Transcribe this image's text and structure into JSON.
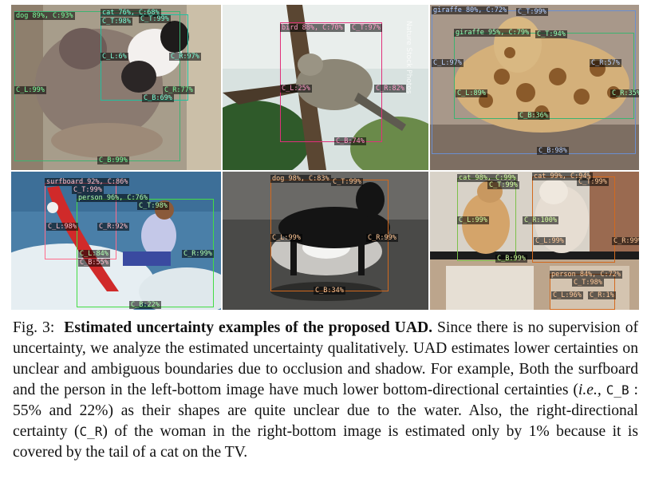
{
  "figure": {
    "panels": [
      {
        "id": "dog-cat",
        "boxes": [
          {
            "color": "#3cb371",
            "labels": [
              "dog 89%, C:93%",
              "C_L:99%",
              "C_R:77%",
              "C_B:99%"
            ]
          },
          {
            "color": "#20c0a0",
            "labels": [
              "cat 76%, C:68%",
              "C_T:98%",
              "C_T:99%",
              "C_L:6%",
              "C_R:97%",
              "C_B:69%"
            ]
          }
        ]
      },
      {
        "id": "bird",
        "boxes": [
          {
            "color": "#e0307a",
            "labels": [
              "bird 88%, C:70%",
              "C_T:97%",
              "C_L:25%",
              "C_R:82%",
              "C_B:74%"
            ]
          }
        ],
        "watermark": "Nature Stock Photos"
      },
      {
        "id": "giraffe",
        "boxes": [
          {
            "color": "#6a8fd0",
            "labels": [
              "giraffe 80%, C:72%",
              "C_T:99%",
              "C_L:97%",
              "C_R:57%",
              "C_B:98%"
            ]
          },
          {
            "color": "#3cb371",
            "labels": [
              "giraffe 95%, C:79%",
              "C_T:94%",
              "C_L:89%",
              "C_R:35%",
              "C_B:36%"
            ]
          }
        ]
      },
      {
        "id": "surf",
        "boxes": [
          {
            "color": "#ff6b8a",
            "labels": [
              "surfboard 92%, C:86%",
              "C_T:99%",
              "C_L:98%",
              "C_R:92%",
              "C_B:55%"
            ]
          },
          {
            "color": "#44dd44",
            "labels": [
              "person 96%, C:76%",
              "C_T:98%",
              "C_L:84%",
              "C_R:99%",
              "C_B:22%"
            ]
          }
        ]
      },
      {
        "id": "dog-sunset",
        "boxes": [
          {
            "color": "#d2691e",
            "labels": [
              "dog 98%, C:83%",
              "C_T:99%",
              "C_L:99%",
              "C_R:99%",
              "C_B:34%"
            ]
          }
        ]
      },
      {
        "id": "cats-tv",
        "boxes": [
          {
            "color": "#7cc04a",
            "labels": [
              "cat 98%, C:99%",
              "C_T:99%",
              "C_L:99%",
              "C_R:100%",
              "C_B:99%"
            ]
          },
          {
            "color": "#d2691e",
            "labels": [
              "cat 99%, C:94%",
              "C_T:99%",
              "C_L:99%",
              "C_R:99%"
            ]
          },
          {
            "color": "#d2691e",
            "labels": [
              "person 84%, C:72%",
              "C_T:98%",
              "C_L:96%",
              "C_R:1%"
            ]
          }
        ]
      }
    ]
  },
  "caption": {
    "fig_label": "Fig. 3:",
    "title": "Estimated uncertainty examples of the proposed UAD.",
    "text_1": "Since there is no supervision of uncertainty, we analyze the estimated uncertainty qualitatively. UAD estimates lower certainties on unclear and ambiguous boundaries due to occlusion and shadow. For example, Both the surfboard and the person in the left-bottom image have much lower bottom-directional certainties (",
    "ie": "i.e.,",
    "cb": "C_B",
    "text_2": " : 55% and 22%) as their shapes are quite unclear due to the water. Also, the right-directional certainty (",
    "cr": "C_R",
    "text_3": ") of the woman in the right-bottom image is estimated only by 1% because it is covered by the tail of a cat on the TV."
  }
}
